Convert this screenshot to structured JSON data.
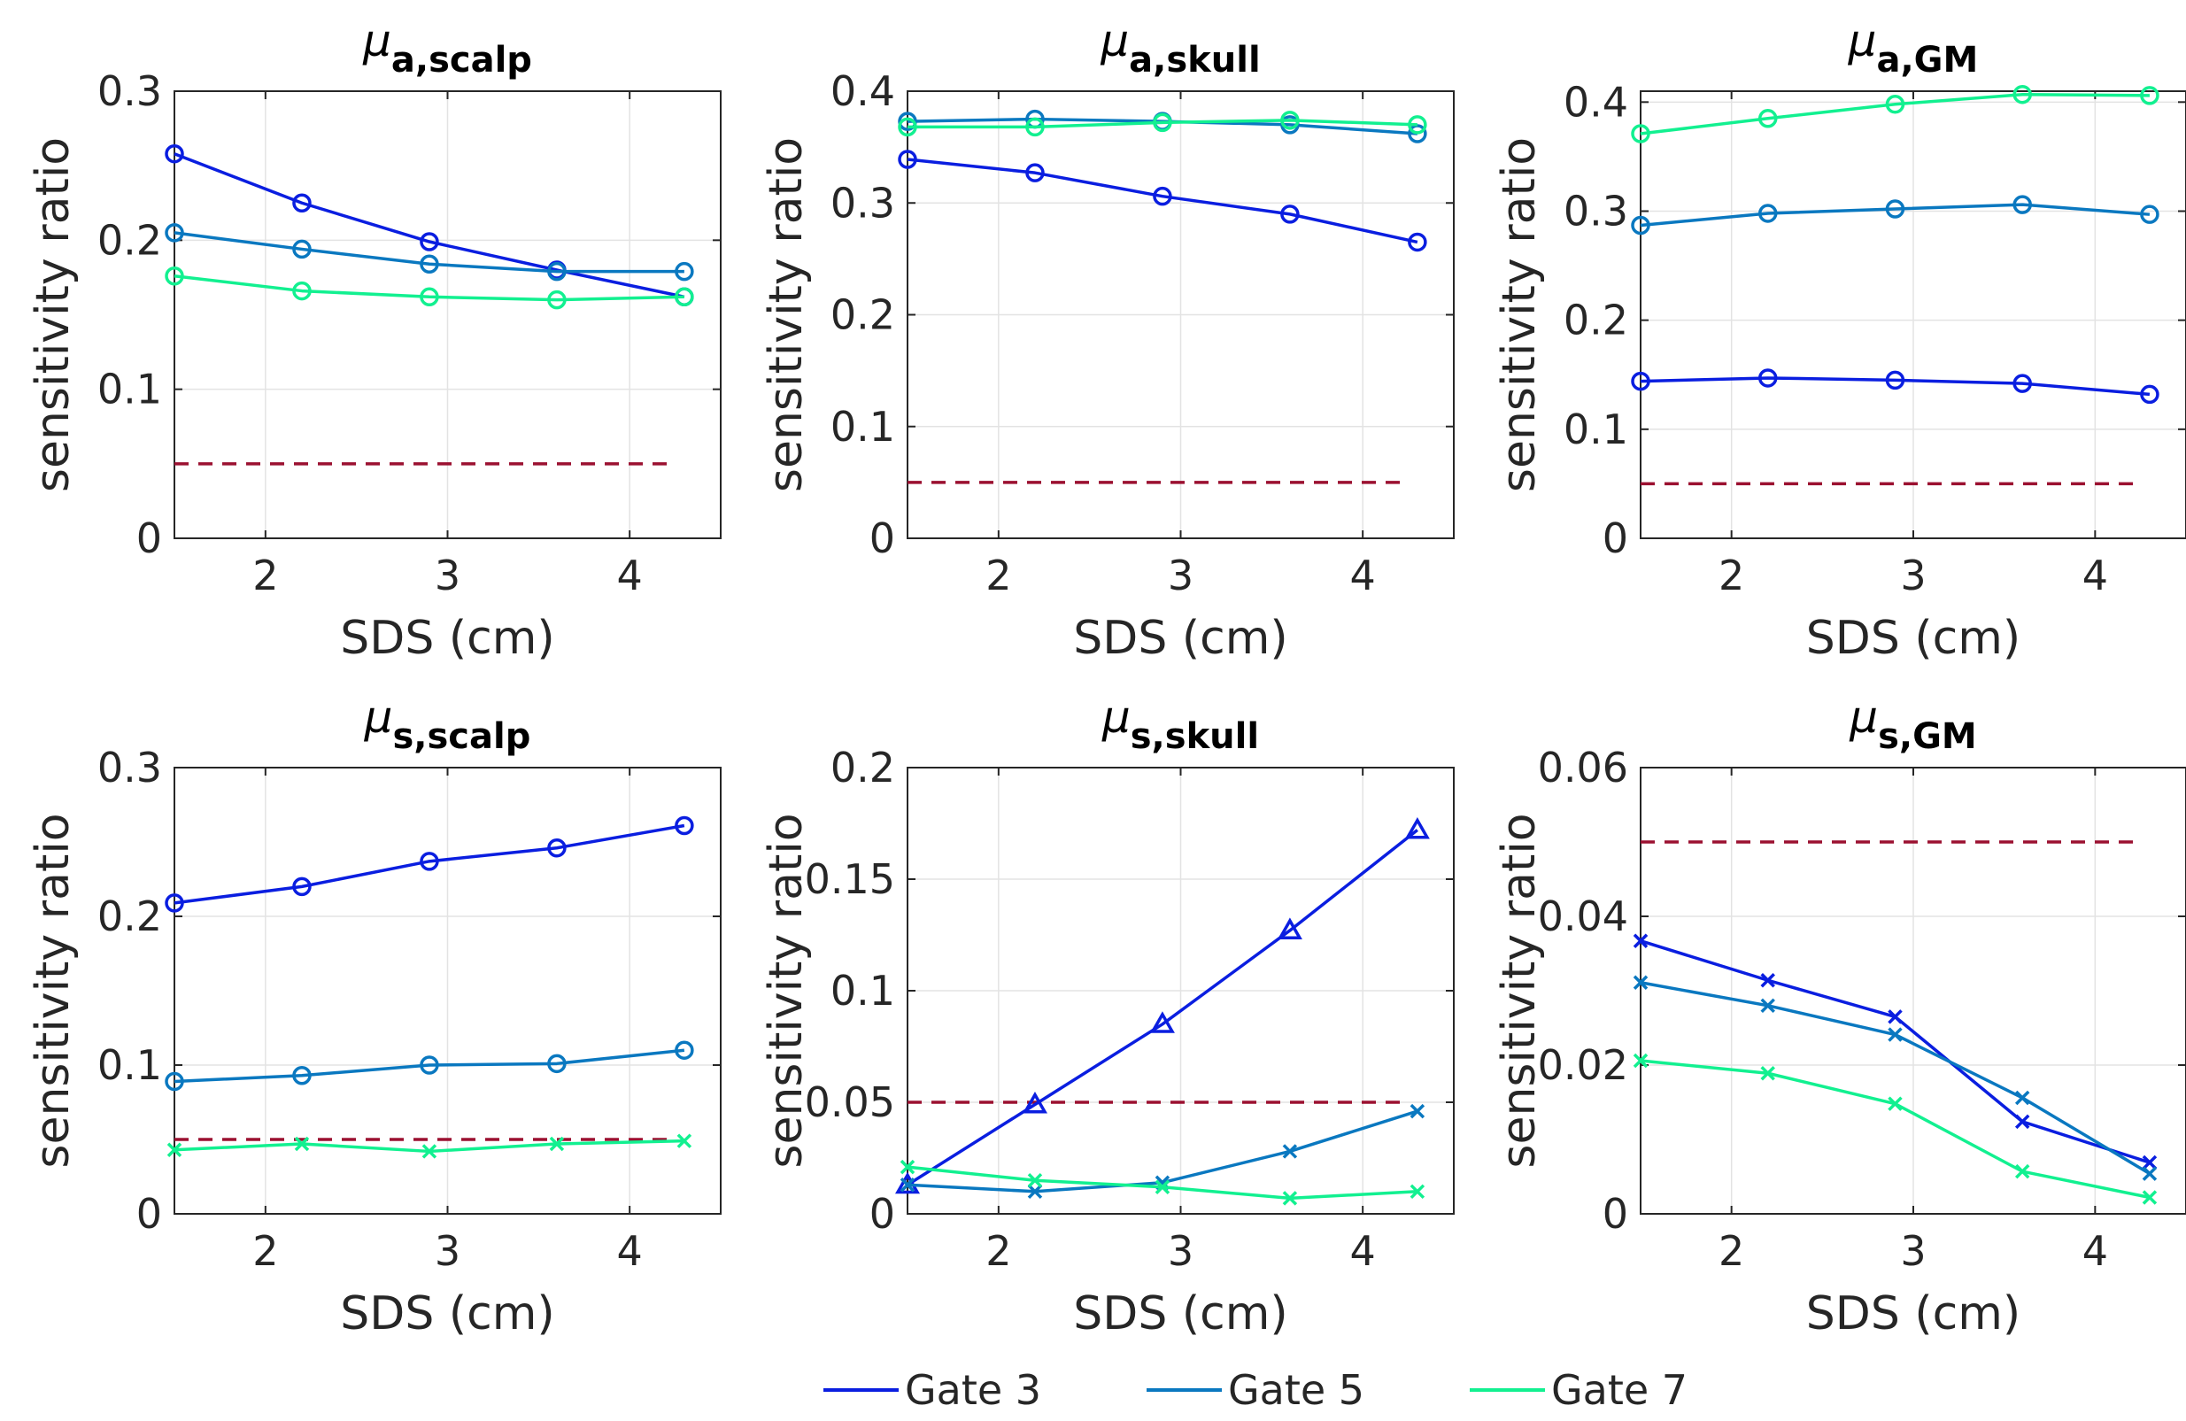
{
  "figure": {
    "legend": {
      "placement": "bottom-center",
      "entries": [
        "Gate 3",
        "Gate 5",
        "Gate 7"
      ]
    },
    "colors": {
      "Gate 3": "#0a1ee0",
      "Gate 5": "#0a78c0",
      "Gate 7": "#12f090",
      "threshold": "#9b1030",
      "axes": "#262626",
      "grid": "#e3e3e3"
    }
  },
  "chart_data": [
    {
      "type": "line",
      "title": {
        "mu": "μ",
        "sub": "a,scalp"
      },
      "xlabel": "SDS (cm)",
      "ylabel": "sensitivity ratio",
      "xlim": [
        1.5,
        4.5
      ],
      "ylim": [
        0,
        0.3
      ],
      "xticks": [
        2,
        3,
        4
      ],
      "yticks": [
        0,
        0.1,
        0.2,
        0.3
      ],
      "ytick_labels": [
        "0",
        "0.1",
        "0.2",
        "0.3"
      ],
      "grid": true,
      "x": [
        1.5,
        2.2,
        2.9,
        3.6,
        4.3
      ],
      "series": [
        {
          "name": "Gate 3",
          "marker": "circle",
          "values": [
            0.258,
            0.225,
            0.199,
            0.18,
            0.162
          ]
        },
        {
          "name": "Gate 5",
          "marker": "circle",
          "values": [
            0.205,
            0.194,
            0.184,
            0.179,
            0.179
          ]
        },
        {
          "name": "Gate 7",
          "marker": "circle",
          "values": [
            0.176,
            0.166,
            0.162,
            0.16,
            0.162
          ]
        }
      ],
      "threshold": {
        "y": 0.05,
        "x_range": [
          1.5,
          4.25
        ]
      }
    },
    {
      "type": "line",
      "title": {
        "mu": "μ",
        "sub": "a,skull"
      },
      "xlabel": "SDS (cm)",
      "ylabel": "sensitivity ratio",
      "xlim": [
        1.5,
        4.5
      ],
      "ylim": [
        0,
        0.4
      ],
      "xticks": [
        2,
        3,
        4
      ],
      "yticks": [
        0,
        0.1,
        0.2,
        0.3,
        0.4
      ],
      "ytick_labels": [
        "0",
        "0.1",
        "0.2",
        "0.3",
        "0.4"
      ],
      "grid": true,
      "x": [
        1.5,
        2.2,
        2.9,
        3.6,
        4.3
      ],
      "series": [
        {
          "name": "Gate 3",
          "marker": "circle",
          "values": [
            0.339,
            0.327,
            0.306,
            0.29,
            0.265
          ]
        },
        {
          "name": "Gate 5",
          "marker": "circle",
          "values": [
            0.373,
            0.375,
            0.373,
            0.37,
            0.362
          ]
        },
        {
          "name": "Gate 7",
          "marker": "circle",
          "values": [
            0.368,
            0.368,
            0.372,
            0.374,
            0.37
          ]
        }
      ],
      "threshold": {
        "y": 0.05,
        "x_range": [
          1.5,
          4.25
        ]
      }
    },
    {
      "type": "line",
      "title": {
        "mu": "μ",
        "sub": "a,GM"
      },
      "xlabel": "SDS (cm)",
      "ylabel": "sensitivity ratio",
      "xlim": [
        1.5,
        4.5
      ],
      "ylim": [
        0,
        0.41
      ],
      "xticks": [
        2,
        3,
        4
      ],
      "yticks": [
        0,
        0.1,
        0.2,
        0.3,
        0.4
      ],
      "ytick_labels": [
        "0",
        "0.1",
        "0.2",
        "0.3",
        "0.4"
      ],
      "grid": true,
      "x": [
        1.5,
        2.2,
        2.9,
        3.6,
        4.3
      ],
      "series": [
        {
          "name": "Gate 3",
          "marker": "circle",
          "values": [
            0.144,
            0.147,
            0.145,
            0.142,
            0.132
          ]
        },
        {
          "name": "Gate 5",
          "marker": "circle",
          "values": [
            0.287,
            0.298,
            0.302,
            0.306,
            0.297
          ]
        },
        {
          "name": "Gate 7",
          "marker": "circle",
          "values": [
            0.371,
            0.385,
            0.398,
            0.407,
            0.406
          ]
        }
      ],
      "threshold": {
        "y": 0.05,
        "x_range": [
          1.5,
          4.25
        ]
      }
    },
    {
      "type": "line",
      "title": {
        "mu": "μ",
        "sub": "s,scalp"
      },
      "xlabel": "SDS (cm)",
      "ylabel": "sensitivity ratio",
      "xlim": [
        1.5,
        4.5
      ],
      "ylim": [
        0,
        0.3
      ],
      "xticks": [
        2,
        3,
        4
      ],
      "yticks": [
        0,
        0.1,
        0.2,
        0.3
      ],
      "ytick_labels": [
        "0",
        "0.1",
        "0.2",
        "0.3"
      ],
      "grid": true,
      "x": [
        1.5,
        2.2,
        2.9,
        3.6,
        4.3
      ],
      "series": [
        {
          "name": "Gate 3",
          "marker": "circle",
          "values": [
            0.209,
            0.22,
            0.237,
            0.246,
            0.261
          ]
        },
        {
          "name": "Gate 5",
          "marker": "circle",
          "values": [
            0.089,
            0.093,
            0.1,
            0.101,
            0.11
          ]
        },
        {
          "name": "Gate 7",
          "marker": "cross",
          "values": [
            0.043,
            0.047,
            0.042,
            0.047,
            0.049
          ]
        }
      ],
      "threshold": {
        "y": 0.05,
        "x_range": [
          1.5,
          4.25
        ]
      }
    },
    {
      "type": "line",
      "title": {
        "mu": "μ",
        "sub": "s,skull"
      },
      "xlabel": "SDS (cm)",
      "ylabel": "sensitivity ratio",
      "xlim": [
        1.5,
        4.5
      ],
      "ylim": [
        0,
        0.2
      ],
      "xticks": [
        2,
        3,
        4
      ],
      "yticks": [
        0,
        0.05,
        0.1,
        0.15,
        0.2
      ],
      "ytick_labels": [
        "0",
        "0.05",
        "0.1",
        "0.15",
        "0.2"
      ],
      "grid": true,
      "x": [
        1.5,
        2.2,
        2.9,
        3.6,
        4.3
      ],
      "series": [
        {
          "name": "Gate 3",
          "marker": "triangle",
          "values": [
            0.013,
            0.049,
            0.085,
            0.127,
            0.172
          ]
        },
        {
          "name": "Gate 5",
          "marker": "cross",
          "values": [
            0.013,
            0.01,
            0.014,
            0.028,
            0.046
          ]
        },
        {
          "name": "Gate 7",
          "marker": "cross",
          "values": [
            0.021,
            0.015,
            0.012,
            0.007,
            0.01
          ]
        }
      ],
      "threshold": {
        "y": 0.05,
        "x_range": [
          1.5,
          4.25
        ]
      }
    },
    {
      "type": "line",
      "title": {
        "mu": "μ",
        "sub": "s,GM"
      },
      "xlabel": "SDS (cm)",
      "ylabel": "sensitivity ratio",
      "xlim": [
        1.5,
        4.5
      ],
      "ylim": [
        0,
        0.06
      ],
      "xticks": [
        2,
        3,
        4
      ],
      "yticks": [
        0,
        0.02,
        0.04,
        0.06
      ],
      "ytick_labels": [
        "0",
        "0.02",
        "0.04",
        "0.06"
      ],
      "grid": true,
      "x": [
        1.5,
        2.2,
        2.9,
        3.6,
        4.3
      ],
      "series": [
        {
          "name": "Gate 3",
          "marker": "cross",
          "values": [
            0.0367,
            0.0314,
            0.0265,
            0.0124,
            0.0069
          ]
        },
        {
          "name": "Gate 5",
          "marker": "cross",
          "values": [
            0.0311,
            0.028,
            0.0241,
            0.0156,
            0.0054
          ]
        },
        {
          "name": "Gate 7",
          "marker": "cross",
          "values": [
            0.0206,
            0.0189,
            0.0148,
            0.0057,
            0.0022
          ]
        }
      ],
      "threshold": {
        "y": 0.05,
        "x_range": [
          1.5,
          4.25
        ]
      }
    }
  ]
}
